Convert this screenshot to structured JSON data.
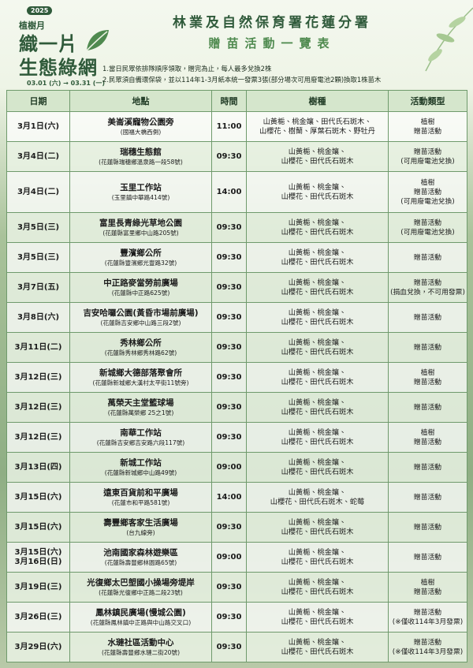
{
  "header": {
    "year": "2025",
    "logo": [
      "植樹月",
      "織一片",
      "生態綠網"
    ],
    "dates": "03.01 (六) → 03.31 (一)",
    "title": "林業及自然保育署花蓮分署",
    "subtitle": "贈苗活動一覽表",
    "notes": [
      "1.當日民眾依排隊順序領取，贈完為止，每人最多兌換2株",
      "2.民眾須自備環保袋，並以114年1-3月紙本統一發票3張(部分場次可用廢電池2顆)換取1株苗木"
    ]
  },
  "table": {
    "columns": [
      "日期",
      "地點",
      "時間",
      "樹種",
      "活動類型"
    ],
    "rows": [
      {
        "date": [
          "3月1日(六)"
        ],
        "place": [
          "美崙溪寵物公園旁",
          "(國福大橋西側)"
        ],
        "time": [
          "11:00"
        ],
        "species": [
          "山黃梔、桃金孃、田代氏石斑木、",
          "山櫻花、樹蘭、厚葉石斑木、野牡丹"
        ],
        "type": [
          "植樹",
          "贈苗活動"
        ]
      },
      {
        "date": [
          "3月4日(二)"
        ],
        "place": [
          "瑞穗生態館",
          "(花蓮縣瑞穗鄉溫泉路一段58號)"
        ],
        "time": [
          "09:30"
        ],
        "species": [
          "山黃梔、桃金孃、",
          "山櫻花、田代氏石斑木"
        ],
        "type": [
          "贈苗活動",
          "(可用廢電池兌換)"
        ]
      },
      {
        "date": [
          "3月4日(二)"
        ],
        "place": [
          "玉里工作站",
          "(玉里鎮中華路414號)"
        ],
        "time": [
          "14:00"
        ],
        "species": [
          "山黃梔、桃金孃、",
          "山櫻花、田代氏石斑木"
        ],
        "type": [
          "植樹",
          "贈苗活動",
          "(可用廢電池兌換)"
        ]
      },
      {
        "date": [
          "3月5日(三)"
        ],
        "place": [
          "富里長青綠光草地公園",
          "(花蓮縣富里鄉中山路205號)"
        ],
        "time": [
          "09:30"
        ],
        "species": [
          "山黃梔、桃金孃、",
          "山櫻花、田代氏石斑木"
        ],
        "type": [
          "贈苗活動",
          "(可用廢電池兌換)"
        ]
      },
      {
        "date": [
          "3月5日(三)"
        ],
        "place": [
          "豐濱鄉公所",
          "(花蓮縣豐濱鄉光豐路32號)"
        ],
        "time": [
          "09:30"
        ],
        "species": [
          "山黃梔、桃金孃、",
          "山櫻花、田代氏石斑木"
        ],
        "type": [
          "贈苗活動"
        ]
      },
      {
        "date": [
          "3月7日(五)"
        ],
        "place": [
          "中正路麥當勞前廣場",
          "(花蓮縣中正路625號)"
        ],
        "time": [
          "09:30"
        ],
        "species": [
          "山黃梔、桃金孃、",
          "山櫻花、田代氏石斑木"
        ],
        "type": [
          "贈苗活動",
          "(捐血兌換，不可用發票)"
        ]
      },
      {
        "date": [
          "3月8日(六)"
        ],
        "place": [
          "吉安哈囉公園(黃昏市場前廣場)",
          "(花蓮縣吉安鄉中山路三段2號)"
        ],
        "time": [
          "09:30"
        ],
        "species": [
          "山黃梔、桃金孃、",
          "山櫻花、田代氏石斑木"
        ],
        "type": [
          "贈苗活動"
        ]
      },
      {
        "date": [
          "3月11日(二)"
        ],
        "place": [
          "秀林鄉公所",
          "(花蓮縣秀林鄉秀林路62號)"
        ],
        "time": [
          "09:30"
        ],
        "species": [
          "山黃梔、桃金孃、",
          "山櫻花、田代氏石斑木"
        ],
        "type": [
          "贈苗活動"
        ]
      },
      {
        "date": [
          "3月12日(三)"
        ],
        "place": [
          "新城鄉大德部落聚會所",
          "(花蓮縣新城鄉大漢村太平街11號旁)"
        ],
        "time": [
          "09:30"
        ],
        "species": [
          "山黃梔、桃金孃、",
          "山櫻花、田代氏石斑木"
        ],
        "type": [
          "植樹",
          "贈苗活動"
        ]
      },
      {
        "date": [
          "3月12日(三)"
        ],
        "place": [
          "萬榮天主堂籃球場",
          "(花蓮縣萬榮鄉 25之1號)"
        ],
        "time": [
          "09:30"
        ],
        "species": [
          "山黃梔、桃金孃、",
          "山櫻花、田代氏石斑木"
        ],
        "type": [
          "贈苗活動"
        ]
      },
      {
        "date": [
          "3月12日(三)"
        ],
        "place": [
          "南華工作站",
          "(花蓮縣吉安鄉吉安路六段117號)"
        ],
        "time": [
          "09:30"
        ],
        "species": [
          "山黃梔、桃金孃、",
          "山櫻花、田代氏石斑木"
        ],
        "type": [
          "植樹",
          "贈苗活動"
        ]
      },
      {
        "date": [
          "3月13日(四)"
        ],
        "place": [
          "新城工作站",
          "(花蓮縣新城鄉中山路49號)"
        ],
        "time": [
          "09:00"
        ],
        "species": [
          "山黃梔、桃金孃、",
          "山櫻花、田代氏石斑木"
        ],
        "type": [
          "贈苗活動"
        ]
      },
      {
        "date": [
          "3月15日(六)"
        ],
        "place": [
          "遠東百貨前和平廣場",
          "(花蓮市和平路581號)"
        ],
        "time": [
          "14:00"
        ],
        "species": [
          "山黃梔、桃金孃、",
          "山櫻花、田代氏石斑木、蛇莓"
        ],
        "type": [
          "贈苗活動"
        ]
      },
      {
        "date": [
          "3月15日(六)"
        ],
        "place": [
          "壽豐鄉客家生活廣場",
          "(台九線旁)"
        ],
        "time": [
          "09:30"
        ],
        "species": [
          "山黃梔、桃金孃、",
          "山櫻花、田代氏石斑木"
        ],
        "type": [
          "贈苗活動"
        ]
      },
      {
        "date": [
          "3月15日(六)",
          "3月16日(日)"
        ],
        "place": [
          "池南國家森林遊樂區",
          "(花蓮縣壽豐鄉林園路65號)"
        ],
        "time": [
          "09:00"
        ],
        "species": [
          "山黃梔、桃金孃、",
          "山櫻花、田代氏石斑木"
        ],
        "type": [
          "贈苗活動"
        ]
      },
      {
        "date": [
          "3月19日(三)"
        ],
        "place": [
          "光復鄉太巴塱國小操場旁堤岸",
          "(花蓮縣光復鄉中正路二段23號)"
        ],
        "time": [
          "09:30"
        ],
        "species": [
          "山黃梔、桃金孃、",
          "山櫻花、田代氏石斑木"
        ],
        "type": [
          "植樹",
          "贈苗活動"
        ]
      },
      {
        "date": [
          "3月26日(三)"
        ],
        "place": [
          "鳳林鎮民廣場(慢城公園)",
          "(花蓮縣鳳林鎮中正路與中山路交叉口)"
        ],
        "time": [
          "09:30"
        ],
        "species": [
          "山黃梔、桃金孃、",
          "山櫻花、田代氏石斑木"
        ],
        "type": [
          "贈苗活動",
          "(※僅收114年3月發票)"
        ]
      },
      {
        "date": [
          "3月29日(六)"
        ],
        "place": [
          "水璉社區活動中心",
          "(花蓮縣壽豐鄉水璉二街20號)"
        ],
        "time": [
          "09:30"
        ],
        "species": [
          "山黃梔、桃金孃、",
          "山櫻花、田代氏石斑木"
        ],
        "type": [
          "贈苗活動",
          "(※僅收114年3月發票)"
        ]
      }
    ]
  }
}
